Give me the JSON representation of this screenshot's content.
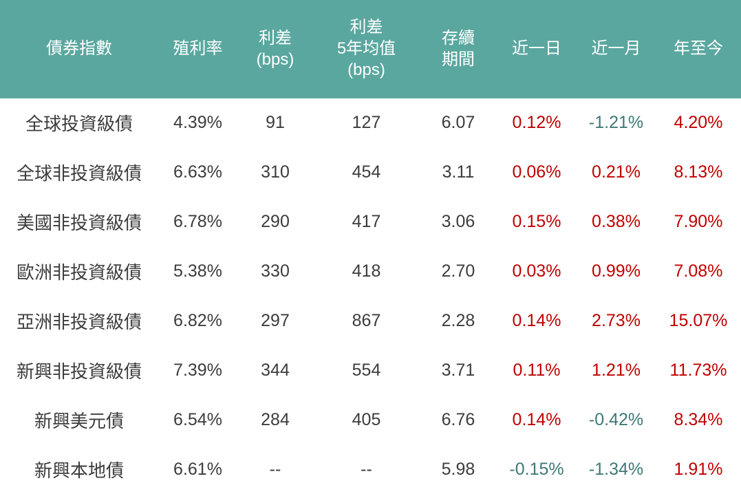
{
  "chart_data": {
    "type": "table",
    "columns": [
      {
        "key": "index",
        "label": "債券指數"
      },
      {
        "key": "yield",
        "label": "殖利率"
      },
      {
        "key": "spread",
        "label": "利差\n(bps)"
      },
      {
        "key": "spread_5y_avg",
        "label": "利差\n5年均值\n(bps)"
      },
      {
        "key": "duration",
        "label": "存續\n期間"
      },
      {
        "key": "day",
        "label": "近一日"
      },
      {
        "key": "month",
        "label": "近一月"
      },
      {
        "key": "ytd",
        "label": "年至今"
      }
    ],
    "performance_columns": [
      "day",
      "month",
      "ytd"
    ],
    "rows": [
      {
        "index": "全球投資級債",
        "yield": "4.39%",
        "spread": "91",
        "spread_5y_avg": "127",
        "duration": "6.07",
        "day": "0.12%",
        "month": "-1.21%",
        "ytd": "4.20%"
      },
      {
        "index": "全球非投資級債",
        "yield": "6.63%",
        "spread": "310",
        "spread_5y_avg": "454",
        "duration": "3.11",
        "day": "0.06%",
        "month": "0.21%",
        "ytd": "8.13%"
      },
      {
        "index": "美國非投資級債",
        "yield": "6.78%",
        "spread": "290",
        "spread_5y_avg": "417",
        "duration": "3.06",
        "day": "0.15%",
        "month": "0.38%",
        "ytd": "7.90%"
      },
      {
        "index": "歐洲非投資級債",
        "yield": "5.38%",
        "spread": "330",
        "spread_5y_avg": "418",
        "duration": "2.70",
        "day": "0.03%",
        "month": "0.99%",
        "ytd": "7.08%"
      },
      {
        "index": "亞洲非投資級債",
        "yield": "6.82%",
        "spread": "297",
        "spread_5y_avg": "867",
        "duration": "2.28",
        "day": "0.14%",
        "month": "2.73%",
        "ytd": "15.07%"
      },
      {
        "index": "新興非投資級債",
        "yield": "7.39%",
        "spread": "344",
        "spread_5y_avg": "554",
        "duration": "3.71",
        "day": "0.11%",
        "month": "1.21%",
        "ytd": "11.73%"
      },
      {
        "index": "新興美元債",
        "yield": "6.54%",
        "spread": "284",
        "spread_5y_avg": "405",
        "duration": "6.76",
        "day": "0.14%",
        "month": "-0.42%",
        "ytd": "8.34%"
      },
      {
        "index": "新興本地債",
        "yield": "6.61%",
        "spread": "--",
        "spread_5y_avg": "--",
        "duration": "5.98",
        "day": "-0.15%",
        "month": "-1.34%",
        "ytd": "1.91%"
      }
    ],
    "colors": {
      "header_bg": "#5aa79f",
      "header_text": "#ffffff",
      "body_text": "#3c3c3c",
      "positive": "#c00000",
      "negative": "#3e7876"
    }
  }
}
